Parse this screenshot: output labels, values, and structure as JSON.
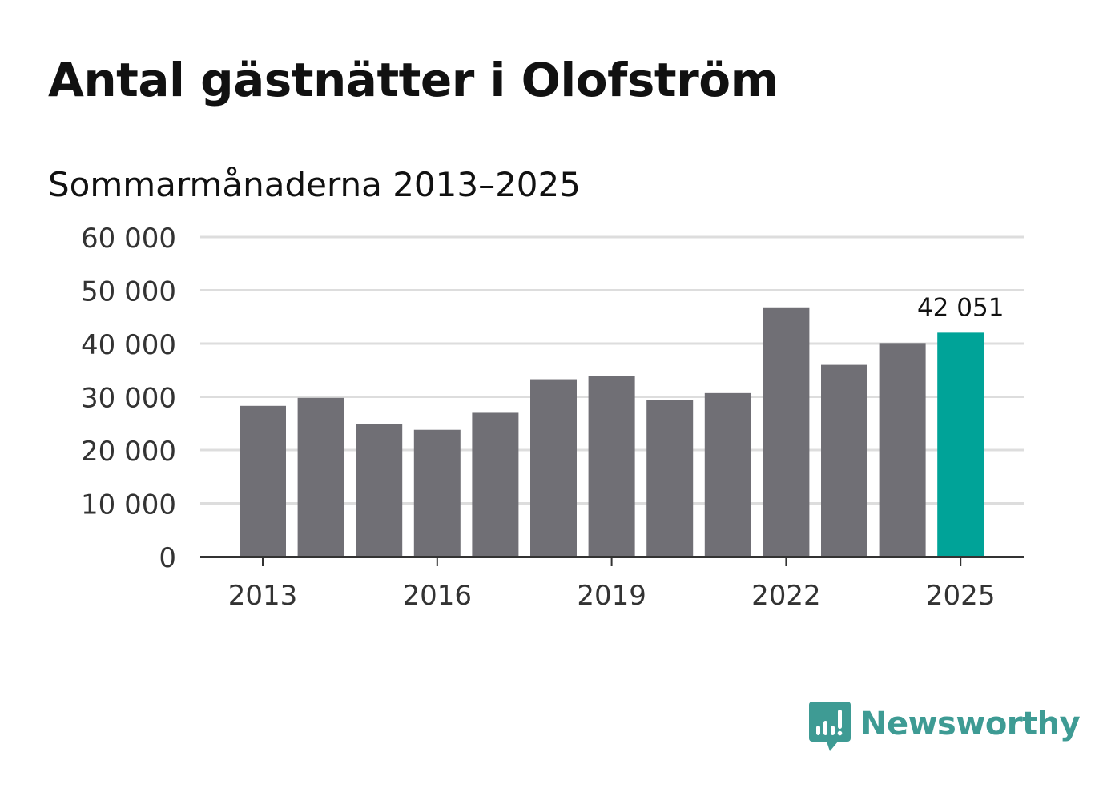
{
  "title": "Antal gästnätter i Olofström",
  "subtitle": "Sommarmånaderna 2013–2025",
  "colors": {
    "bar": "#706f75",
    "highlight": "#00a398",
    "grid": "#dddddd",
    "axis": "#333333",
    "brand": "#3e9b94"
  },
  "chart_data": {
    "type": "bar",
    "categories": [
      "2013",
      "2014",
      "2015",
      "2016",
      "2017",
      "2018",
      "2019",
      "2020",
      "2021",
      "2022",
      "2023",
      "2024",
      "2025"
    ],
    "values": [
      28300,
      29800,
      24900,
      23800,
      27000,
      33300,
      33900,
      29400,
      30700,
      46800,
      36000,
      40100,
      42051
    ],
    "xticks": [
      "2013",
      "2016",
      "2019",
      "2022",
      "2025"
    ],
    "yticks": [
      "0",
      "10 000",
      "20 000",
      "30 000",
      "40 000",
      "50 000",
      "60 000"
    ],
    "ylim": [
      0,
      60000
    ],
    "grid": true,
    "highlight": {
      "category": "2025",
      "label": "42 051"
    }
  },
  "brand": {
    "name": "Newsworthy",
    "icon": "newsworthy-logo-icon"
  }
}
